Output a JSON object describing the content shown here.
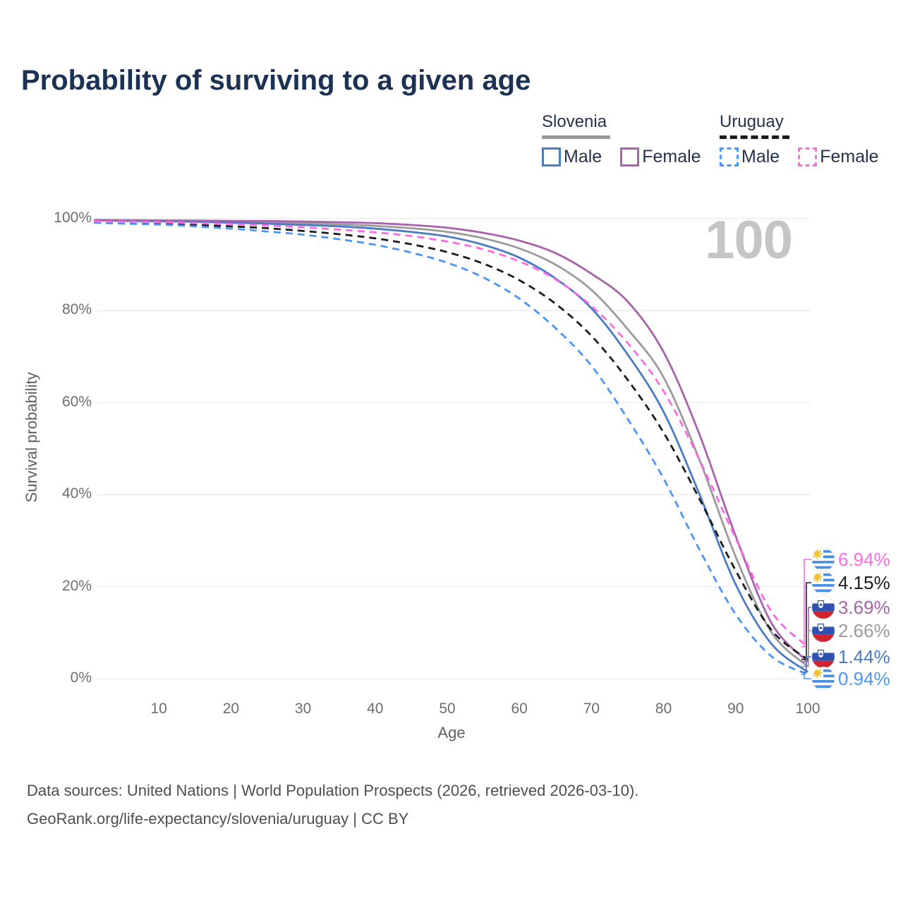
{
  "title": "Probability of surviving to a given age",
  "watermark_age": "100",
  "legend": {
    "groups": [
      {
        "label": "Slovenia",
        "line_style": "solid",
        "underline_color": "#9a9a9a",
        "items": [
          {
            "label": "Male",
            "color": "#4a7bc4",
            "dashed": false
          },
          {
            "label": "Female",
            "color": "#a763ab",
            "dashed": false
          }
        ]
      },
      {
        "label": "Uruguay",
        "line_style": "dashed",
        "underline_color": "#1c1c1c",
        "items": [
          {
            "label": "Male",
            "color": "#4b96f8",
            "dashed": true
          },
          {
            "label": "Female",
            "color": "#fb6ce4",
            "dashed": true
          }
        ]
      }
    ]
  },
  "y_axis": {
    "title": "Survival probability",
    "ticks": [
      "100%",
      "80%",
      "60%",
      "40%",
      "20%",
      "0%"
    ]
  },
  "x_axis": {
    "title": "Age",
    "ticks": [
      "10",
      "20",
      "30",
      "40",
      "50",
      "60",
      "70",
      "80",
      "90",
      "100"
    ]
  },
  "end_labels": [
    {
      "value_label": "6.94%",
      "pct": 6.94,
      "flag": "uruguay",
      "series": "Uruguay Female",
      "color": "#fb6ce4"
    },
    {
      "value_label": "4.15%",
      "pct": 4.15,
      "flag": "uruguay",
      "series": "Uruguay Both sexes",
      "color": "#1c1c1c"
    },
    {
      "value_label": "3.69%",
      "pct": 3.69,
      "flag": "slovenia",
      "series": "Slovenia Female",
      "color": "#a763ab"
    },
    {
      "value_label": "2.66%",
      "pct": 2.66,
      "flag": "slovenia",
      "series": "Slovenia Both sexes",
      "color": "#9b9b9b"
    },
    {
      "value_label": "1.44%",
      "pct": 1.44,
      "flag": "slovenia",
      "series": "Slovenia Male",
      "color": "#4a7bc4"
    },
    {
      "value_label": "0.94%",
      "pct": 0.94,
      "flag": "uruguay",
      "series": "Uruguay Male",
      "color": "#4b96f8"
    }
  ],
  "footer": {
    "line1": "Data sources: United Nations | World Population Prospects (2026, retrieved 2026-03-10).",
    "line2": "GeoRank.org/life-expectancy/slovenia/uruguay | CC BY"
  },
  "chart_data": {
    "type": "line",
    "title": "Probability of surviving to a given age",
    "xlabel": "Age",
    "ylabel": "Survival probability",
    "xlim": [
      1,
      100
    ],
    "ylim_pct": [
      0,
      100
    ],
    "grid": "horizontal",
    "legend_position": "top-right",
    "x": [
      1,
      5,
      10,
      15,
      20,
      25,
      30,
      35,
      40,
      45,
      50,
      55,
      60,
      65,
      70,
      75,
      80,
      85,
      90,
      95,
      100
    ],
    "series": [
      {
        "name": "Slovenia Both sexes",
        "key": "slovenia-all",
        "color": "#9b9b9b",
        "dash": "solid",
        "values": [
          99.6,
          99.55,
          99.5,
          99.4,
          99.3,
          99.15,
          99.0,
          98.75,
          98.4,
          97.9,
          97.1,
          95.7,
          93.5,
          90.0,
          84.5,
          76.0,
          65.5,
          47.5,
          26.5,
          10.0,
          2.66
        ]
      },
      {
        "name": "Slovenia Male",
        "key": "slovenia-male",
        "color": "#4a7bc4",
        "dash": "solid",
        "values": [
          99.6,
          99.5,
          99.4,
          99.3,
          99.1,
          98.9,
          98.6,
          98.3,
          97.8,
          97.1,
          96.1,
          94.3,
          91.5,
          87.0,
          80.5,
          70.5,
          58.0,
          40.0,
          20.5,
          7.5,
          1.44
        ]
      },
      {
        "name": "Slovenia Female",
        "key": "slovenia-female",
        "color": "#a763ab",
        "dash": "solid",
        "values": [
          99.7,
          99.65,
          99.6,
          99.55,
          99.5,
          99.45,
          99.35,
          99.2,
          99.0,
          98.6,
          98.0,
          96.9,
          95.2,
          92.5,
          88.0,
          82.0,
          71.0,
          53.0,
          31.0,
          12.0,
          3.69
        ]
      },
      {
        "name": "Uruguay Both sexes",
        "key": "uruguay-all",
        "color": "#1c1c1c",
        "dash": "dashed",
        "values": [
          99.2,
          99.1,
          98.9,
          98.6,
          98.3,
          97.9,
          97.3,
          96.6,
          95.7,
          94.4,
          92.7,
          90.2,
          86.6,
          81.5,
          74.5,
          65.0,
          53.5,
          39.0,
          23.5,
          10.5,
          4.15
        ]
      },
      {
        "name": "Uruguay Male",
        "key": "uruguay-male",
        "color": "#4b96f8",
        "dash": "dashed",
        "values": [
          99.1,
          98.9,
          98.7,
          98.3,
          97.8,
          97.2,
          96.5,
          95.5,
          94.3,
          92.6,
          90.4,
          87.2,
          82.6,
          76.2,
          68.0,
          56.5,
          43.5,
          28.0,
          14.0,
          4.8,
          0.94
        ]
      },
      {
        "name": "Uruguay Female",
        "key": "uruguay-female",
        "color": "#fb6ce4",
        "dash": "dashed",
        "values": [
          99.4,
          99.3,
          99.2,
          99.0,
          98.8,
          98.5,
          98.1,
          97.6,
          97.0,
          96.2,
          95.0,
          93.3,
          90.7,
          86.8,
          81.0,
          73.0,
          62.5,
          47.5,
          30.5,
          14.5,
          6.94
        ]
      }
    ]
  }
}
